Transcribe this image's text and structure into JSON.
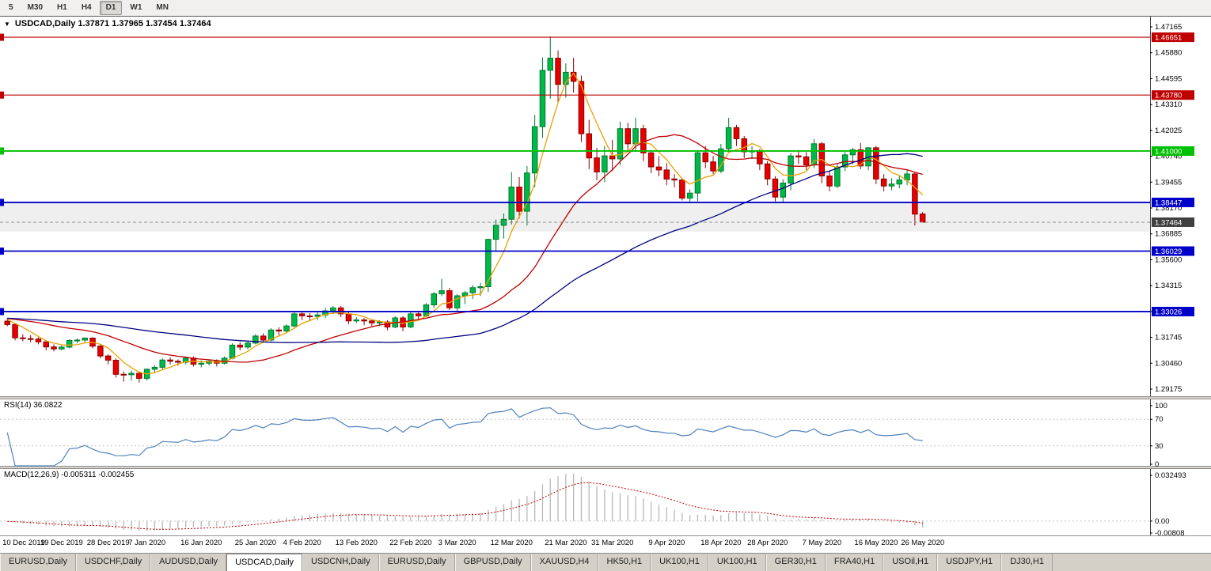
{
  "toolbar": {
    "timeframes": [
      {
        "label": "5",
        "active": false
      },
      {
        "label": "M30",
        "active": false
      },
      {
        "label": "H1",
        "active": false
      },
      {
        "label": "H4",
        "active": false
      },
      {
        "label": "D1",
        "active": true
      },
      {
        "label": "W1",
        "active": false
      },
      {
        "label": "MN",
        "active": false
      }
    ]
  },
  "chart_header": {
    "icon": "▼",
    "title": "USDCAD,Daily 1.37871 1.37965 1.37454 1.37464"
  },
  "indicator_headers": {
    "rsi": "RSI(14) 36.0822",
    "macd": "MACD(12,26,9) -0.005311 -0.002455"
  },
  "chart_data": {
    "type": "candlestick",
    "symbol": "USDCAD",
    "timeframe": "Daily",
    "price_axis": {
      "min": 1.29175,
      "max": 1.47165,
      "ticks": [
        "1.47165",
        "1.45880",
        "1.44595",
        "1.43310",
        "1.42025",
        "1.40740",
        "1.39455",
        "1.38170",
        "1.36885",
        "1.35600",
        "1.34315",
        "1.33030",
        "1.31745",
        "1.30460",
        "1.29175"
      ]
    },
    "levels": [
      {
        "price": 1.46651,
        "label": "1.46651",
        "color": "#C00000",
        "width": 1.2
      },
      {
        "price": 1.4378,
        "label": "1.43780",
        "color": "#C00000",
        "width": 1.2
      },
      {
        "price": 1.41,
        "label": "1.41000",
        "color": "#00C000",
        "width": 1.8
      },
      {
        "price": 1.38447,
        "label": "1.38447",
        "color": "#0000C8",
        "width": 1.8
      },
      {
        "price": 1.36029,
        "label": "1.36029",
        "color": "#0000C8",
        "width": 1.8
      },
      {
        "price": 1.33026,
        "label": "1.33026",
        "color": "#0000C8",
        "width": 1.8
      }
    ],
    "current_price": {
      "value": 1.37464,
      "label": "1.37464",
      "box_color": "#404040",
      "line_color": "#909090"
    },
    "zone": {
      "from": 1.38447,
      "to": 1.37,
      "color": "#EFEFEF"
    },
    "ma_seed": 1.327,
    "moving_averages": [
      {
        "name": "fast",
        "type": "sma",
        "period": 5,
        "color": "#E8A200"
      },
      {
        "name": "medium",
        "type": "sma",
        "period": 20,
        "color": "#C00000"
      },
      {
        "name": "slow",
        "type": "sma",
        "period": 50,
        "color": "#000080"
      }
    ],
    "rsi": {
      "period": 14,
      "value_label": "36.0822",
      "axis_ticks": [
        "100",
        "70",
        "30",
        "0"
      ],
      "guide_levels": [
        70,
        30
      ],
      "color": "#4F81BD",
      "range": [
        0,
        100
      ]
    },
    "macd": {
      "fast": 12,
      "slow": 26,
      "signal": 9,
      "value_labels": [
        "-0.005311",
        "-0.002455"
      ],
      "axis_ticks": [
        {
          "label": "0.032493",
          "value": 0.032493
        },
        {
          "label": "0.00",
          "value": 0
        },
        {
          "label": "-0.00808",
          "value": -0.00808
        }
      ],
      "range": [
        -0.0095,
        0.0345
      ],
      "hist_color": "#B8B8B8",
      "signal_color": "#C00000"
    },
    "colors": {
      "up_candle": "#00B84A",
      "up_border": "#007A2E",
      "down_candle": "#E60000",
      "down_border": "#8F0000",
      "axis_line": "#404040",
      "splitter": "#d6d2ca",
      "splitter_edge": "#909090"
    },
    "x_labels": [
      [
        "10 Dec 2019",
        0
      ],
      [
        "19 Dec 2019",
        7
      ],
      [
        "28 Dec 2019",
        13
      ],
      [
        "7 Jan 2020",
        18
      ],
      [
        "16 Jan 2020",
        25
      ],
      [
        "25 Jan 2020",
        32
      ],
      [
        "4 Feb 2020",
        38
      ],
      [
        "13 Feb 2020",
        45
      ],
      [
        "22 Feb 2020",
        52
      ],
      [
        "3 Mar 2020",
        58
      ],
      [
        "12 Mar 2020",
        65
      ],
      [
        "21 Mar 2020",
        72
      ],
      [
        "31 Mar 2020",
        78
      ],
      [
        "9 Apr 2020",
        85
      ],
      [
        "18 Apr 2020",
        92
      ],
      [
        "28 Apr 2020",
        98
      ],
      [
        "7 May 2020",
        105
      ],
      [
        "16 May 2020",
        112
      ],
      [
        "26 May 2020",
        118
      ]
    ],
    "ohlc": [
      [
        1.3255,
        1.327,
        1.323,
        1.3238
      ],
      [
        1.3238,
        1.3245,
        1.316,
        1.3172
      ],
      [
        1.3172,
        1.319,
        1.3155,
        1.3168
      ],
      [
        1.3168,
        1.3185,
        1.315,
        1.3166
      ],
      [
        1.3166,
        1.3175,
        1.314,
        1.3152
      ],
      [
        1.3152,
        1.316,
        1.311,
        1.3127
      ],
      [
        1.3127,
        1.314,
        1.3105,
        1.3117
      ],
      [
        1.3117,
        1.314,
        1.311,
        1.3126
      ],
      [
        1.3126,
        1.3165,
        1.312,
        1.3159
      ],
      [
        1.3159,
        1.317,
        1.3145,
        1.3161
      ],
      [
        1.3161,
        1.3175,
        1.315,
        1.3171
      ],
      [
        1.3171,
        1.3175,
        1.312,
        1.3131
      ],
      [
        1.3131,
        1.314,
        1.307,
        1.3082
      ],
      [
        1.3082,
        1.309,
        1.304,
        1.3061
      ],
      [
        1.3061,
        1.307,
        1.2975,
        1.2991
      ],
      [
        1.2991,
        1.3005,
        1.2955,
        1.2989
      ],
      [
        1.2989,
        1.301,
        1.296,
        1.2996
      ],
      [
        1.2996,
        1.3005,
        1.295,
        1.2971
      ],
      [
        1.2971,
        1.302,
        1.296,
        1.3016
      ],
      [
        1.3016,
        1.3035,
        1.3,
        1.3026
      ],
      [
        1.3026,
        1.307,
        1.3015,
        1.3062
      ],
      [
        1.3062,
        1.3075,
        1.304,
        1.3056
      ],
      [
        1.3056,
        1.3065,
        1.3035,
        1.3051
      ],
      [
        1.3051,
        1.308,
        1.304,
        1.3071
      ],
      [
        1.3071,
        1.308,
        1.303,
        1.3041
      ],
      [
        1.3041,
        1.306,
        1.3025,
        1.3046
      ],
      [
        1.3046,
        1.3065,
        1.3035,
        1.3056
      ],
      [
        1.3056,
        1.3065,
        1.303,
        1.3046
      ],
      [
        1.3046,
        1.308,
        1.304,
        1.3071
      ],
      [
        1.3071,
        1.3145,
        1.3065,
        1.3136
      ],
      [
        1.3136,
        1.315,
        1.311,
        1.3126
      ],
      [
        1.3126,
        1.3155,
        1.3115,
        1.3146
      ],
      [
        1.3146,
        1.319,
        1.314,
        1.3181
      ],
      [
        1.3181,
        1.3195,
        1.315,
        1.3161
      ],
      [
        1.3161,
        1.322,
        1.3155,
        1.3211
      ],
      [
        1.3211,
        1.3225,
        1.3185,
        1.3206
      ],
      [
        1.3206,
        1.324,
        1.3195,
        1.3231
      ],
      [
        1.3231,
        1.33,
        1.3225,
        1.3291
      ],
      [
        1.3291,
        1.3305,
        1.326,
        1.3281
      ],
      [
        1.3281,
        1.3295,
        1.3255,
        1.3279
      ],
      [
        1.3279,
        1.33,
        1.326,
        1.3286
      ],
      [
        1.3286,
        1.332,
        1.327,
        1.3306
      ],
      [
        1.3306,
        1.333,
        1.329,
        1.3321
      ],
      [
        1.3321,
        1.333,
        1.3275,
        1.3291
      ],
      [
        1.3291,
        1.33,
        1.324,
        1.3256
      ],
      [
        1.3256,
        1.3275,
        1.3245,
        1.3261
      ],
      [
        1.3261,
        1.327,
        1.3235,
        1.3256
      ],
      [
        1.3256,
        1.3265,
        1.323,
        1.3246
      ],
      [
        1.3246,
        1.326,
        1.323,
        1.3251
      ],
      [
        1.3251,
        1.326,
        1.321,
        1.3226
      ],
      [
        1.3226,
        1.328,
        1.322,
        1.3271
      ],
      [
        1.3271,
        1.328,
        1.3205,
        1.3226
      ],
      [
        1.3226,
        1.33,
        1.322,
        1.3291
      ],
      [
        1.3291,
        1.3305,
        1.326,
        1.3281
      ],
      [
        1.3281,
        1.3345,
        1.3275,
        1.3336
      ],
      [
        1.3336,
        1.34,
        1.332,
        1.3391
      ],
      [
        1.3391,
        1.3465,
        1.338,
        1.3406
      ],
      [
        1.3406,
        1.342,
        1.331,
        1.3321
      ],
      [
        1.3321,
        1.339,
        1.33,
        1.3381
      ],
      [
        1.3381,
        1.3405,
        1.334,
        1.3396
      ],
      [
        1.3396,
        1.3435,
        1.3365,
        1.3421
      ],
      [
        1.3421,
        1.3445,
        1.338,
        1.3426
      ],
      [
        1.3426,
        1.3665,
        1.34,
        1.3661
      ],
      [
        1.3661,
        1.376,
        1.36,
        1.3731
      ],
      [
        1.3731,
        1.379,
        1.3665,
        1.3761
      ],
      [
        1.3761,
        1.3995,
        1.3735,
        1.3921
      ],
      [
        1.3921,
        1.397,
        1.3765,
        1.3801
      ],
      [
        1.3801,
        1.4025,
        1.373,
        1.3991
      ],
      [
        1.3991,
        1.428,
        1.392,
        1.4221
      ],
      [
        1.4221,
        1.4565,
        1.4165,
        1.4501
      ],
      [
        1.4501,
        1.4669,
        1.436,
        1.4561
      ],
      [
        1.4561,
        1.46,
        1.434,
        1.4431
      ],
      [
        1.4431,
        1.4535,
        1.4365,
        1.4491
      ],
      [
        1.4491,
        1.4563,
        1.439,
        1.4446
      ],
      [
        1.4446,
        1.4475,
        1.4145,
        1.4186
      ],
      [
        1.4186,
        1.4255,
        1.401,
        1.4066
      ],
      [
        1.4066,
        1.4115,
        1.3955,
        1.3996
      ],
      [
        1.3996,
        1.4125,
        1.3945,
        1.4076
      ],
      [
        1.4076,
        1.4155,
        1.4,
        1.4061
      ],
      [
        1.4061,
        1.4246,
        1.403,
        1.4211
      ],
      [
        1.4211,
        1.424,
        1.4105,
        1.4136
      ],
      [
        1.4136,
        1.4265,
        1.4095,
        1.4211
      ],
      [
        1.4211,
        1.423,
        1.405,
        1.4091
      ],
      [
        1.4091,
        1.4105,
        1.399,
        1.4021
      ],
      [
        1.4021,
        1.4075,
        1.3975,
        1.4006
      ],
      [
        1.4006,
        1.404,
        1.393,
        1.3961
      ],
      [
        1.3961,
        1.3985,
        1.392,
        1.3956
      ],
      [
        1.3956,
        1.3965,
        1.3855,
        1.3866
      ],
      [
        1.3866,
        1.391,
        1.384,
        1.3891
      ],
      [
        1.3891,
        1.4105,
        1.385,
        1.4091
      ],
      [
        1.4091,
        1.4125,
        1.4015,
        1.4046
      ],
      [
        1.4046,
        1.4075,
        1.3985,
        1.4001
      ],
      [
        1.4001,
        1.4135,
        1.399,
        1.4111
      ],
      [
        1.4111,
        1.4265,
        1.409,
        1.4216
      ],
      [
        1.4216,
        1.423,
        1.4125,
        1.4161
      ],
      [
        1.4161,
        1.4175,
        1.4065,
        1.4096
      ],
      [
        1.4096,
        1.4125,
        1.406,
        1.4101
      ],
      [
        1.4101,
        1.411,
        1.4005,
        1.4036
      ],
      [
        1.4036,
        1.405,
        1.393,
        1.3961
      ],
      [
        1.3961,
        1.3975,
        1.385,
        1.3871
      ],
      [
        1.3871,
        1.396,
        1.3845,
        1.3941
      ],
      [
        1.3941,
        1.409,
        1.3905,
        1.4076
      ],
      [
        1.4076,
        1.4105,
        1.4035,
        1.4071
      ],
      [
        1.4071,
        1.4095,
        1.4005,
        1.4031
      ],
      [
        1.4031,
        1.416,
        1.4015,
        1.4136
      ],
      [
        1.4136,
        1.4145,
        1.394,
        1.3976
      ],
      [
        1.3976,
        1.4,
        1.39,
        1.3926
      ],
      [
        1.3926,
        1.4035,
        1.3915,
        1.4021
      ],
      [
        1.4021,
        1.4095,
        1.4,
        1.4081
      ],
      [
        1.4081,
        1.4115,
        1.4035,
        1.4106
      ],
      [
        1.4106,
        1.414,
        1.401,
        1.4026
      ],
      [
        1.4026,
        1.412,
        1.4005,
        1.4116
      ],
      [
        1.4116,
        1.4125,
        1.3935,
        1.3961
      ],
      [
        1.3961,
        1.3985,
        1.39,
        1.3926
      ],
      [
        1.3926,
        1.3965,
        1.3905,
        1.3936
      ],
      [
        1.3936,
        1.398,
        1.3915,
        1.3956
      ],
      [
        1.3956,
        1.401,
        1.393,
        1.3986
      ],
      [
        1.3986,
        1.3995,
        1.373,
        1.3787
      ],
      [
        1.37871,
        1.37965,
        1.37454,
        1.37464
      ]
    ]
  },
  "bottom_tabs": {
    "items": [
      {
        "label": "EURUSD,Daily",
        "active": false
      },
      {
        "label": "USDCHF,Daily",
        "active": false
      },
      {
        "label": "AUDUSD,Daily",
        "active": false
      },
      {
        "label": "USDCAD,Daily",
        "active": true
      },
      {
        "label": "USDCNH,Daily",
        "active": false
      },
      {
        "label": "EURUSD,Daily",
        "active": false
      },
      {
        "label": "GBPUSD,Daily",
        "active": false
      },
      {
        "label": "XAUUSD,H4",
        "active": false
      },
      {
        "label": "HK50,H1",
        "active": false
      },
      {
        "label": "UK100,H1",
        "active": false
      },
      {
        "label": "UK100,H1",
        "active": false
      },
      {
        "label": "GER30,H1",
        "active": false
      },
      {
        "label": "FRA40,H1",
        "active": false
      },
      {
        "label": "USOil,H1",
        "active": false
      },
      {
        "label": "USDJPY,H1",
        "active": false
      },
      {
        "label": "DJ30,H1",
        "active": false
      }
    ]
  }
}
